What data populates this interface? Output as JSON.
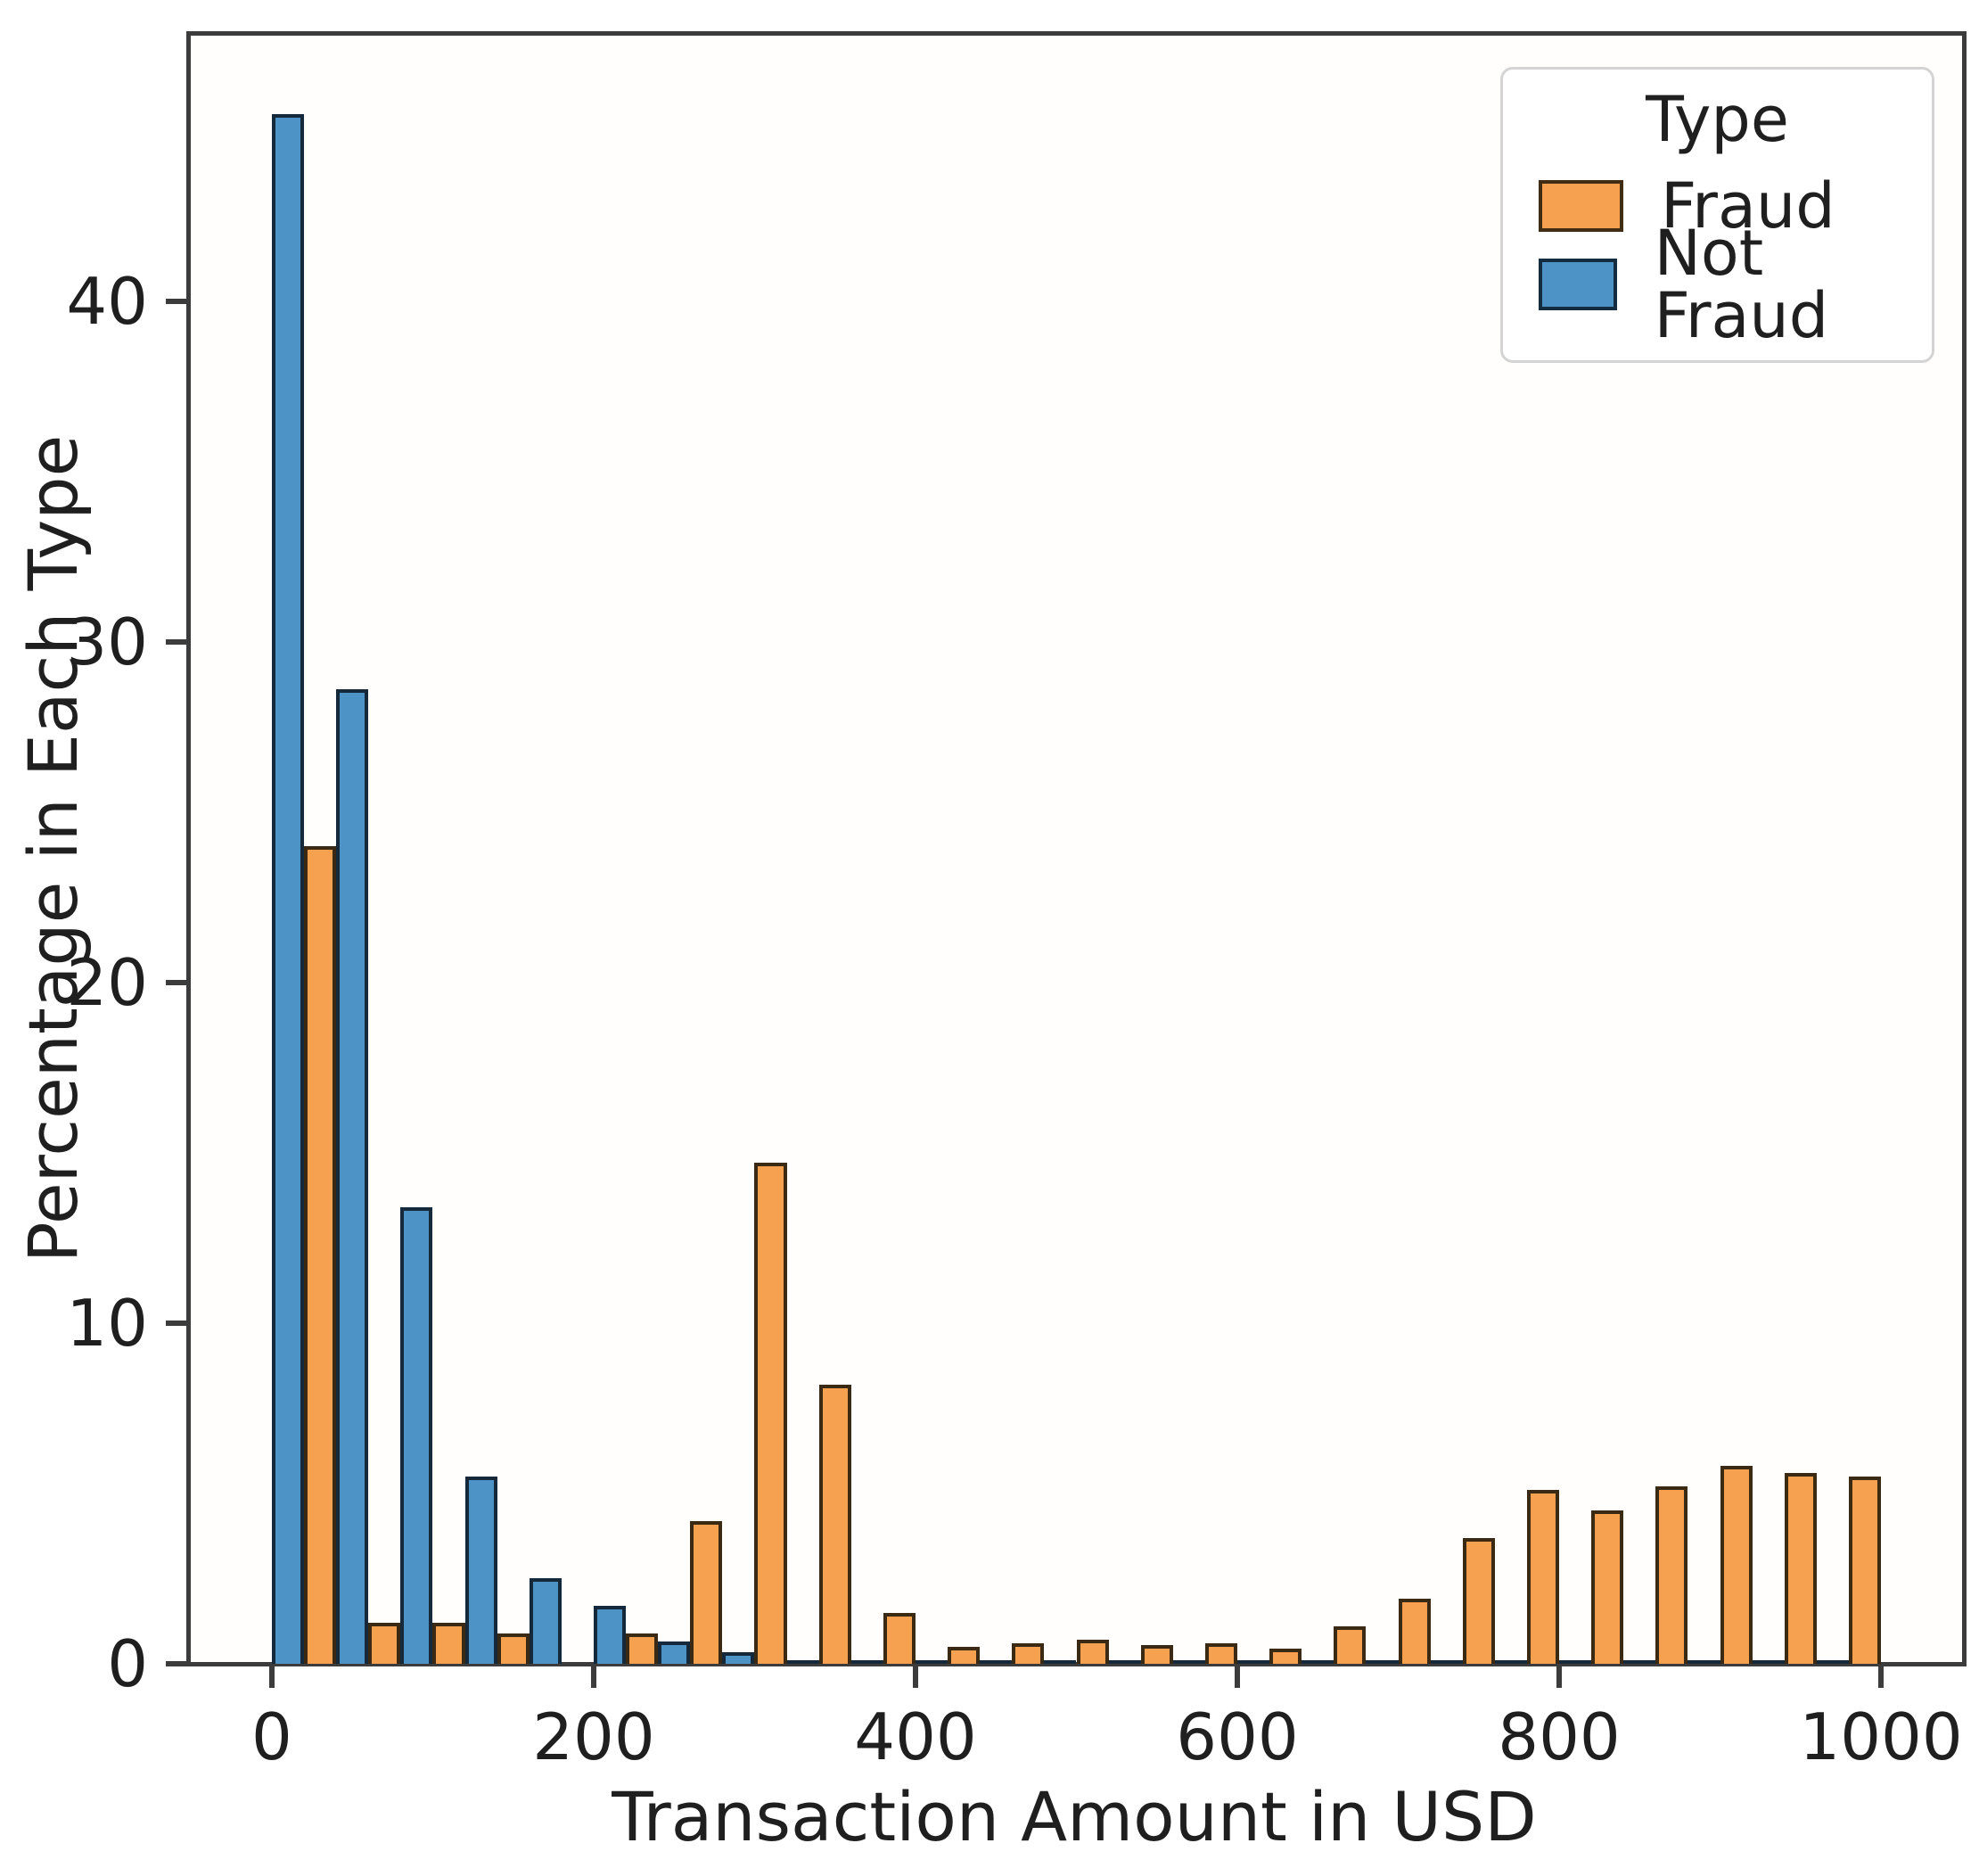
{
  "chart_data": {
    "type": "bar",
    "subtype": "grouped_histogram_dodged",
    "title": "",
    "xlabel": "Transaction Amount in USD",
    "ylabel": "Percentage in Each Type",
    "x_ticks": [
      0,
      200,
      400,
      600,
      800,
      1000
    ],
    "x_tick_labels": [
      "0",
      "200",
      "400",
      "600",
      "800",
      "1000"
    ],
    "y_ticks": [
      0,
      10,
      20,
      30,
      40
    ],
    "y_tick_labels": [
      "0",
      "10",
      "20",
      "30",
      "40"
    ],
    "xlim": [
      -51.5,
      1051.5
    ],
    "ylim": [
      0,
      47.85
    ],
    "grid": false,
    "bin_start_usd": 0,
    "bin_width_usd": 40,
    "bin_count": 25,
    "legend": {
      "title": "Type",
      "position": "upper right",
      "entries": [
        {
          "label": "Fraud",
          "color": "#f6a14f",
          "edge": "#3f2c12"
        },
        {
          "label": "Not Fraud",
          "color": "#4e93c6",
          "edge": "#132c40"
        }
      ]
    },
    "series": [
      {
        "name": "Not Fraud",
        "color": "#4e93c6",
        "edge": "#16293b",
        "offset_frac": 0.0,
        "width_frac": 0.5,
        "values": [
          45.5,
          28.6,
          13.4,
          5.5,
          2.5,
          1.7,
          0.65,
          0.35,
          0.1,
          0.1,
          0.1,
          0.1,
          0.1,
          0.1,
          0.1,
          0.1,
          0.1,
          0.1,
          0.1,
          0.1,
          0.1,
          0.1,
          0.1,
          0.1,
          0.1
        ]
      },
      {
        "name": "Fraud",
        "color": "#f6a14f",
        "edge": "#3a2a14",
        "offset_frac": 0.5,
        "width_frac": 0.5,
        "values": [
          24.0,
          1.2,
          1.2,
          0.9,
          0,
          0.9,
          4.2,
          14.7,
          8.2,
          1.5,
          0.5,
          0.6,
          0.7,
          0.55,
          0.6,
          0.45,
          1.1,
          1.9,
          3.7,
          5.1,
          4.5,
          5.2,
          5.8,
          5.6,
          5.5
        ]
      }
    ]
  }
}
